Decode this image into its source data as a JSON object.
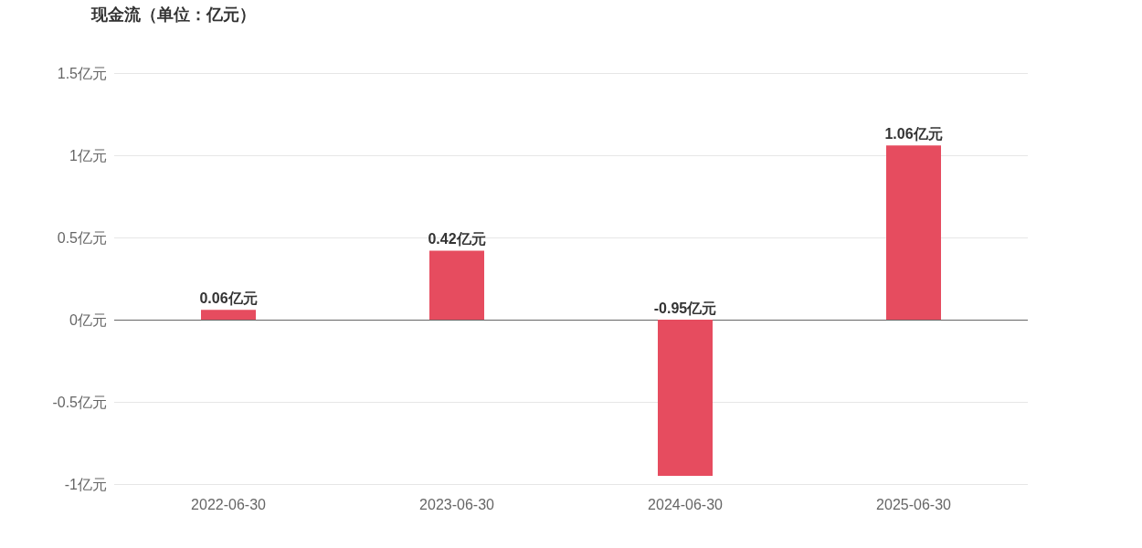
{
  "chart_data": {
    "type": "bar",
    "title": "现金流（单位：亿元）",
    "categories": [
      "2022-06-30",
      "2023-06-30",
      "2024-06-30",
      "2025-06-30"
    ],
    "values": [
      0.06,
      0.42,
      -0.95,
      1.06
    ],
    "color": "#e64c5f",
    "value_labels": [
      "0.06亿元",
      "0.42亿元",
      "-0.95亿元",
      "1.06亿元"
    ],
    "ylim": [
      -1,
      1.5
    ],
    "yticks": [
      {
        "value": -1,
        "label": "-1亿元"
      },
      {
        "value": -0.5,
        "label": "-0.5亿元"
      },
      {
        "value": 0,
        "label": "0亿元"
      },
      {
        "value": 0.5,
        "label": "0.5亿元"
      },
      {
        "value": 1,
        "label": "1亿元"
      },
      {
        "value": 1.5,
        "label": "1.5亿元"
      }
    ],
    "grid": true
  }
}
